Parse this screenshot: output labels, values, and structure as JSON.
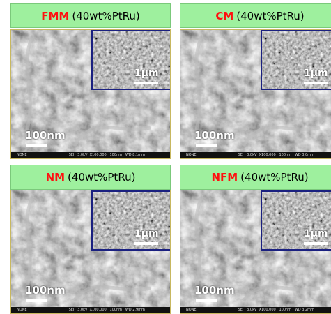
{
  "panels": [
    {
      "name": "FMM",
      "composition": "(40wt%PtRu)",
      "inset_scale": "1μm",
      "main_scale": "100nm",
      "footer_left": "NONE",
      "footer_right": "SEI   3.0kV  X100,000   100nm   WD 8.1mm"
    },
    {
      "name": "CM",
      "composition": "(40wt%PtRu)",
      "inset_scale": "1μm",
      "main_scale": "100nm",
      "footer_left": "NONE",
      "footer_right": "SEI   3.0kV  X100,000   100nm   WD 3.0mm"
    },
    {
      "name": "NM",
      "composition": "(40wt%PtRu)",
      "inset_scale": "1μm",
      "main_scale": "100nm",
      "footer_left": "NONE",
      "footer_right": "SEI   3.0kV  X100,000   100nm   WD 2.9mm"
    },
    {
      "name": "NFM",
      "composition": "(40wt%PtRu)",
      "inset_scale": "1μm",
      "main_scale": "100nm",
      "footer_left": "NONE",
      "footer_right": "SEI   3.0kV  X100,000   100nm   WD 3.2mm"
    }
  ]
}
